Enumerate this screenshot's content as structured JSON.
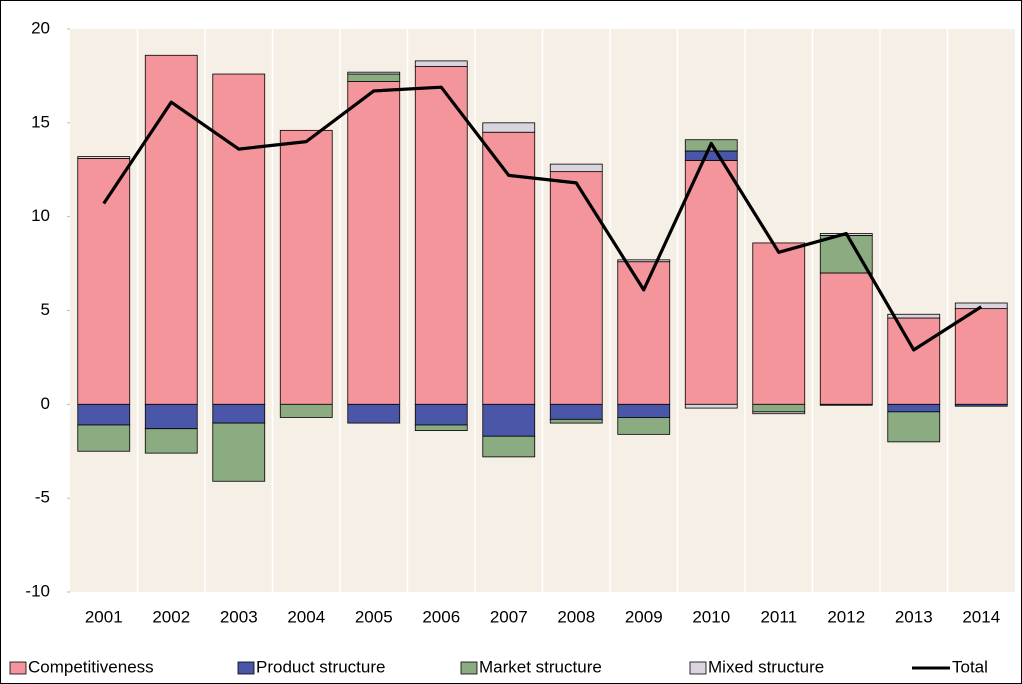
{
  "chart_data": {
    "type": "stacked-bar-line",
    "categories": [
      "2001",
      "2002",
      "2003",
      "2004",
      "2005",
      "2006",
      "2007",
      "2008",
      "2009",
      "2010",
      "2011",
      "2012",
      "2013",
      "2014"
    ],
    "series": [
      {
        "name": "Competitiveness",
        "color": "#f3959b",
        "values": [
          13.1,
          18.6,
          17.6,
          14.6,
          17.2,
          18.0,
          14.5,
          12.4,
          7.6,
          13.0,
          8.6,
          7.0,
          4.6,
          5.1
        ]
      },
      {
        "name": "Product structure",
        "color": "#4a56a8",
        "values": [
          -1.1,
          -1.3,
          -1.0,
          0,
          -1.0,
          -1.1,
          -1.7,
          -0.8,
          -0.7,
          0.5,
          0,
          -0.05,
          -0.4,
          -0.1
        ]
      },
      {
        "name": "Market structure",
        "color": "#8bab80",
        "values": [
          -1.4,
          -1.3,
          -3.1,
          -0.7,
          0.4,
          -0.3,
          -1.1,
          -0.2,
          -0.9,
          0.6,
          -0.4,
          2.0,
          -1.6,
          0
        ]
      },
      {
        "name": "Mixed structure",
        "color": "#d9d4de",
        "values": [
          0.1,
          0,
          0,
          0,
          0.1,
          0.3,
          0.5,
          0.4,
          0.1,
          -0.2,
          -0.1,
          0.1,
          0.2,
          0.3
        ]
      },
      {
        "name": "Total",
        "color": "#000000",
        "line": true,
        "values": [
          10.7,
          16.1,
          13.6,
          14.0,
          16.7,
          16.9,
          12.2,
          11.8,
          6.1,
          13.9,
          8.1,
          9.1,
          2.9,
          5.2
        ]
      }
    ],
    "ylim": [
      -10,
      20
    ],
    "yticks": [
      -10,
      -5,
      0,
      5,
      10,
      15,
      20
    ],
    "xgrid": true,
    "legend": "bottom",
    "background": "#f6efe6"
  }
}
